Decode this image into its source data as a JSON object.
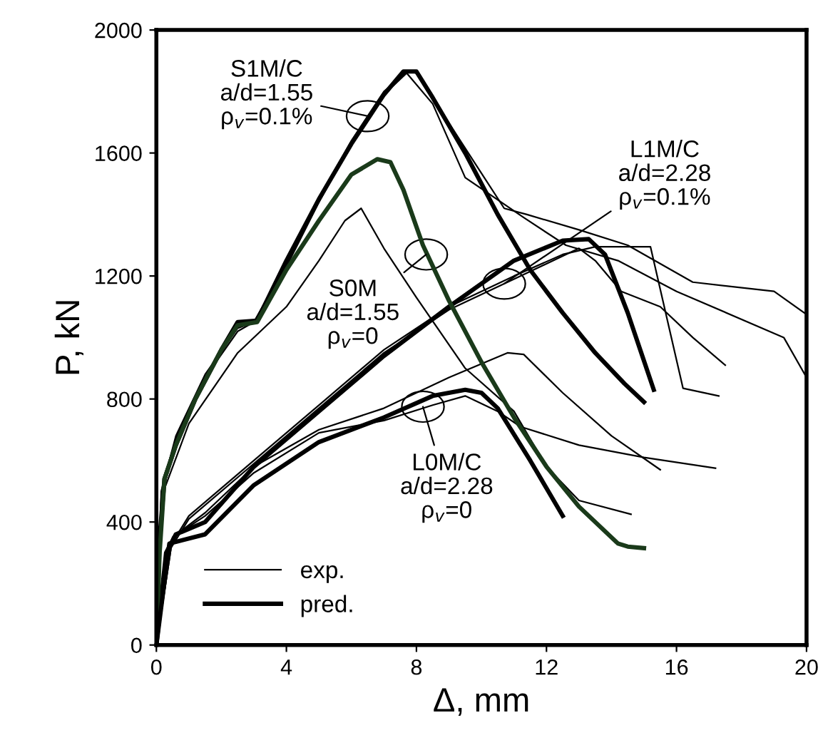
{
  "chart_data": {
    "type": "line",
    "xlabel": "Δ, mm",
    "ylabel": "P, kN",
    "xlim": [
      0,
      20
    ],
    "xticks": [
      0,
      4,
      8,
      12,
      16,
      20
    ],
    "ylim": [
      0,
      2000
    ],
    "yticks": [
      0,
      400,
      800,
      1200,
      1600,
      2000
    ],
    "grid": false,
    "legend": "bottom left",
    "marker": "none",
    "line_style": "solid",
    "series": [
      {
        "name": "exp.",
        "color": "#000000",
        "x": [
          0,
          0.15,
          0.6,
          1.5,
          2.5,
          3,
          4,
          5,
          6,
          7,
          7.7,
          8,
          10.7,
          11.4,
          13,
          14.5,
          16.5,
          19,
          20
        ],
        "values": [
          0,
          500,
          680,
          880,
          1030,
          1050,
          1240,
          1450,
          1640,
          1800,
          1865,
          1860,
          1420,
          1400,
          1350,
          1300,
          1180,
          1150,
          1075
        ]
      },
      {
        "color": "#000000",
        "x": [
          0,
          0.15,
          0.6,
          1.5,
          2.5,
          3,
          4,
          5,
          6,
          7,
          7.7,
          8.5,
          9.5,
          11.3,
          12.6,
          14.2,
          16,
          19.3,
          20
        ],
        "values": [
          0,
          480,
          670,
          870,
          1020,
          1050,
          1230,
          1440,
          1630,
          1790,
          1860,
          1760,
          1520,
          1390,
          1300,
          1250,
          1150,
          1000,
          870
        ]
      },
      {
        "color": "#000000",
        "x": [
          0,
          0.15,
          1,
          2.5,
          4,
          5,
          5.8,
          6.3,
          7,
          8,
          9.5,
          11,
          12,
          13,
          14.6
        ],
        "values": [
          0,
          480,
          720,
          950,
          1100,
          1250,
          1380,
          1420,
          1290,
          1130,
          900,
          760,
          580,
          470,
          425
        ]
      },
      {
        "color": "#000000",
        "x": [
          0,
          0.3,
          1,
          3,
          5,
          7,
          9,
          11,
          12.5,
          13.5,
          15.2,
          16.2,
          17.3
        ],
        "values": [
          0,
          300,
          420,
          600,
          780,
          960,
          1100,
          1200,
          1270,
          1295,
          1295,
          835,
          810
        ]
      },
      {
        "color": "#000000",
        "x": [
          0,
          0.3,
          1,
          3,
          5,
          7,
          9,
          11,
          13,
          13.5,
          14.3,
          15.5,
          16.5,
          17.5
        ],
        "values": [
          0,
          290,
          410,
          590,
          770,
          950,
          1090,
          1190,
          1290,
          1250,
          1150,
          1100,
          1000,
          910
        ]
      },
      {
        "color": "#000000",
        "x": [
          0,
          0.5,
          1.5,
          3,
          5,
          7,
          8.5,
          9.5,
          10.5,
          11.2,
          13,
          15,
          17.2
        ],
        "values": [
          0,
          350,
          420,
          560,
          690,
          730,
          780,
          810,
          760,
          710,
          650,
          610,
          575
        ]
      },
      {
        "color": "#000000",
        "x": [
          0,
          0.5,
          1.5,
          3,
          5,
          7,
          9,
          10.8,
          11.3,
          12.5,
          14,
          15.5
        ],
        "values": [
          0,
          350,
          430,
          580,
          700,
          770,
          870,
          950,
          945,
          820,
          680,
          570
        ]
      },
      {
        "name": "pred.",
        "color": "#000000",
        "x": [
          0,
          0.1,
          0.25,
          0.6,
          1.2,
          2,
          2.5,
          3.1,
          4,
          5,
          6,
          7,
          7.6,
          8,
          8.5,
          9.5,
          10.5,
          11.5,
          12.5,
          13.5,
          14.4,
          15
        ],
        "values": [
          0,
          350,
          540,
          650,
          800,
          960,
          1050,
          1055,
          1250,
          1450,
          1630,
          1790,
          1865,
          1865,
          1780,
          1600,
          1400,
          1220,
          1080,
          950,
          850,
          790
        ]
      },
      {
        "color": "#000000",
        "x": [
          0,
          0.3,
          0.6,
          1.5,
          3,
          5,
          7,
          9,
          11,
          12.5,
          13.3,
          13.8,
          14.5,
          15.3
        ],
        "values": [
          0,
          300,
          360,
          400,
          580,
          760,
          940,
          1100,
          1250,
          1315,
          1320,
          1270,
          1080,
          830
        ]
      },
      {
        "color": "#1a3a1a",
        "x": [
          0,
          0.1,
          0.25,
          0.6,
          1.2,
          2,
          2.5,
          3.1,
          4,
          5,
          6,
          6.8,
          7.2,
          7.6,
          8.2,
          9,
          10,
          11,
          12,
          13,
          14.2,
          14.5,
          15
        ],
        "values": [
          0,
          300,
          540,
          650,
          800,
          960,
          1040,
          1050,
          1220,
          1380,
          1530,
          1580,
          1570,
          1480,
          1300,
          1120,
          920,
          740,
          580,
          450,
          330,
          320,
          315
        ]
      },
      {
        "color": "#000000",
        "x": [
          0,
          0.4,
          1.5,
          3,
          5,
          7,
          8.5,
          9.5,
          10,
          10.5,
          11.5,
          12.5
        ],
        "values": [
          0,
          330,
          360,
          520,
          660,
          740,
          810,
          830,
          820,
          770,
          600,
          420
        ]
      }
    ],
    "annotations": [
      {
        "text": "S1M/C\na/d=1.55\nρ$_{v}$=0.1%",
        "x": 6.5,
        "y": 1720
      },
      {
        "text": "S0M\na/d=1.55\nρ$_{v}$=0",
        "x": 8.3,
        "y": 1270
      },
      {
        "text": "L1M/C\na/d=2.28\nρ$_{v}$=0.1%",
        "x": 10.7,
        "y": 1175
      },
      {
        "text": "L0M/C\na/d=2.28\nρ$_{v}$=0",
        "x": 8.2,
        "y": 775
      }
    ]
  }
}
